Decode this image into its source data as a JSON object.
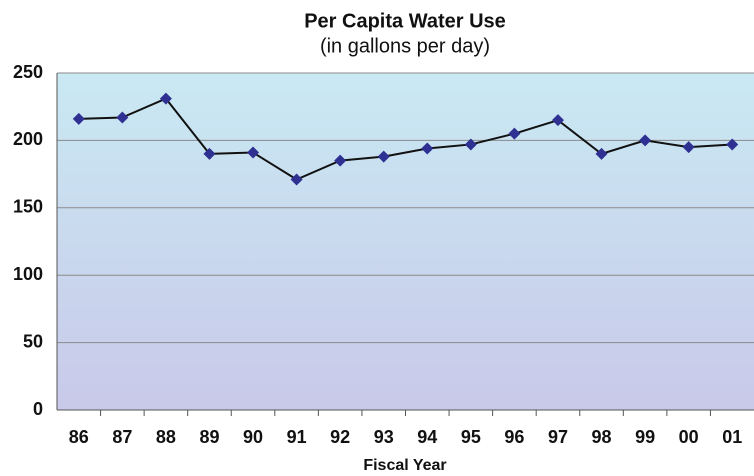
{
  "chart_data": {
    "type": "line",
    "title": "Per Capita Water Use",
    "subtitle": "(in gallons per day)",
    "x_label": "Fiscal Year",
    "categories": [
      "86",
      "87",
      "88",
      "89",
      "90",
      "91",
      "92",
      "93",
      "94",
      "95",
      "96",
      "97",
      "98",
      "99",
      "00",
      "01"
    ],
    "values": [
      216,
      217,
      231,
      190,
      191,
      171,
      185,
      188,
      194,
      197,
      205,
      215,
      190,
      200,
      195,
      197
    ],
    "color": "#111111",
    "marker_color": "#2e3192",
    "ylim": [
      0,
      250
    ],
    "yticks": [
      0,
      50,
      100,
      150,
      200,
      250
    ],
    "grid": true
  }
}
